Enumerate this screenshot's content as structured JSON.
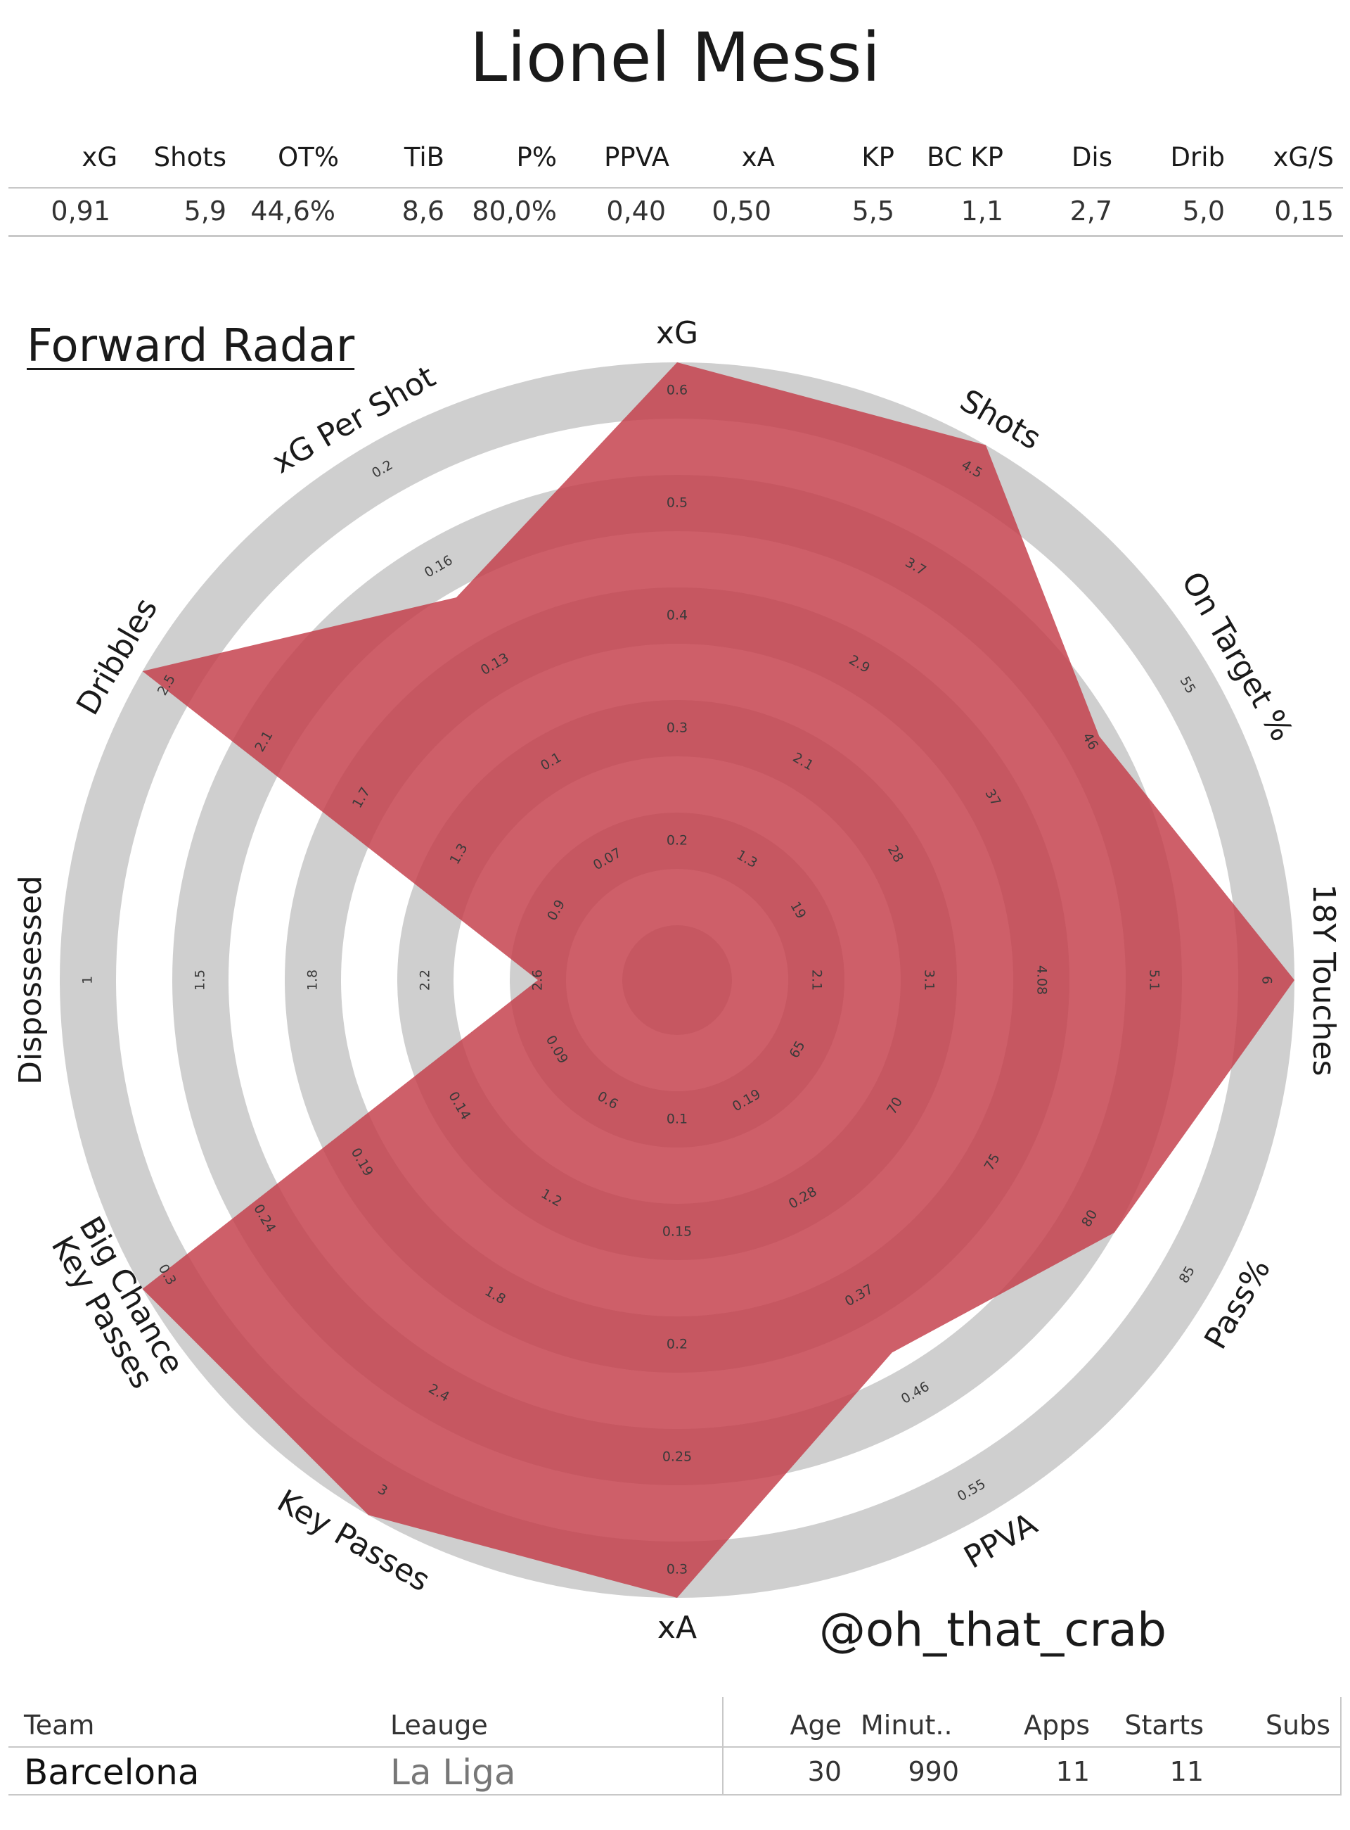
{
  "title": "Lionel Messi",
  "stats": {
    "headers": [
      "xG",
      "Shots",
      "OT%",
      "TiB",
      "P%",
      "PPVA",
      "xA",
      "KP",
      "BC KP",
      "Dis",
      "Drib",
      "xG/S"
    ],
    "values": [
      "0,91",
      "5,9",
      "44,6%",
      "8,6",
      "80,0%",
      "0,40",
      "0,50",
      "5,5",
      "1,1",
      "2,7",
      "5,0",
      "0,15"
    ]
  },
  "radar_title": "Forward Radar",
  "watermark": "@oh_that_crab",
  "colors": {
    "polygon": "#c33c48",
    "ring_grey": "#cfcfcf",
    "ring_white": "#ffffff"
  },
  "chart_data": {
    "type": "radar",
    "title": "Forward Radar",
    "axes": [
      {
        "label": "xG",
        "ticks": [
          "0.2",
          "0.3",
          "0.4",
          "0.5",
          "0.6"
        ],
        "min": 0.1,
        "max": 0.6,
        "value": 0.6
      },
      {
        "label": "Shots",
        "ticks": [
          "1.3",
          "2.1",
          "2.9",
          "3.7",
          "4.5"
        ],
        "min": 0.5,
        "max": 4.5,
        "value": 4.5
      },
      {
        "label": "On Target %",
        "ticks": [
          "19",
          "28",
          "37",
          "46",
          "55"
        ],
        "min": 10,
        "max": 55,
        "value": 44.6
      },
      {
        "label": "18Y Touches",
        "ticks": [
          "2.1",
          "3.1",
          "4.08",
          "5.1",
          "6"
        ],
        "min": 1.1,
        "max": 6,
        "value": 6
      },
      {
        "label": "Pass%",
        "ticks": [
          "65",
          "70",
          "75",
          "80",
          "85"
        ],
        "min": 60,
        "max": 85,
        "value": 80
      },
      {
        "label": "PPVA",
        "ticks": [
          "0.19",
          "0.28",
          "0.37",
          "0.46",
          "0.55"
        ],
        "min": 0.1,
        "max": 0.55,
        "value": 0.4
      },
      {
        "label": "xA",
        "ticks": [
          "0.1",
          "0.15",
          "0.2",
          "0.25",
          "0.3"
        ],
        "min": 0.05,
        "max": 0.3,
        "value": 0.3
      },
      {
        "label": "Key Passes",
        "ticks": [
          "0.6",
          "1.2",
          "1.8",
          "2.4",
          "3"
        ],
        "min": 0,
        "max": 3,
        "value": 3
      },
      {
        "label": "Big Chance\nKey Passes",
        "ticks": [
          "0.09",
          "0.14",
          "0.19",
          "0.24",
          "0.3"
        ],
        "min": 0.04,
        "max": 0.3,
        "value": 0.3
      },
      {
        "label": "Dispossessed",
        "ticks": [
          "2.6",
          "2.2",
          "1.8",
          "1.5",
          "1"
        ],
        "min": 3,
        "max": 1,
        "value": 2.7
      },
      {
        "label": "Dribbles",
        "ticks": [
          "0.9",
          "1.3",
          "1.7",
          "2.1",
          "2.5"
        ],
        "min": 0.5,
        "max": 2.5,
        "value": 2.5
      },
      {
        "label": "xG Per Shot",
        "ticks": [
          "0.07",
          "0.1",
          "0.13",
          "0.16",
          "0.2"
        ],
        "min": 0.04,
        "max": 0.2,
        "value": 0.15
      }
    ]
  },
  "footer": {
    "headers": {
      "team": "Team",
      "league": "Leauge",
      "age": "Age",
      "minutes": "Minut..",
      "apps": "Apps",
      "starts": "Starts",
      "subs": "Subs"
    },
    "values": {
      "team": "Barcelona",
      "league": "La Liga",
      "age": "30",
      "minutes": "990",
      "apps": "11",
      "starts": "11",
      "subs": ""
    }
  }
}
